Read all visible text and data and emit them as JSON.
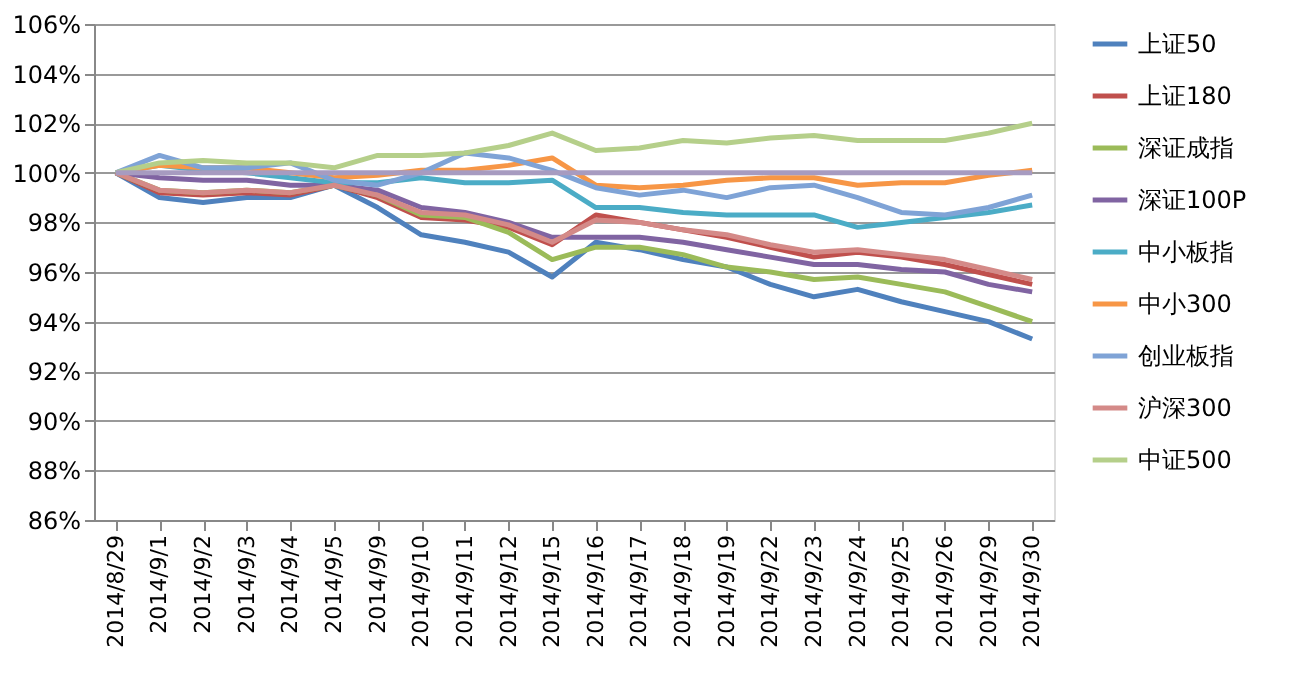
{
  "chart_data": {
    "type": "line",
    "categories": [
      "2014/8/29",
      "2014/9/1",
      "2014/9/2",
      "2014/9/3",
      "2014/9/4",
      "2014/9/5",
      "2014/9/9",
      "2014/9/10",
      "2014/9/11",
      "2014/9/12",
      "2014/9/15",
      "2014/9/16",
      "2014/9/17",
      "2014/9/18",
      "2014/9/19",
      "2014/9/22",
      "2014/9/23",
      "2014/9/24",
      "2014/9/25",
      "2014/9/26",
      "2014/9/29",
      "2014/9/30"
    ],
    "ylim": [
      86,
      106
    ],
    "yticks": [
      {
        "value": 86,
        "label": "86%"
      },
      {
        "value": 88,
        "label": "88%"
      },
      {
        "value": 90,
        "label": "90%"
      },
      {
        "value": 92,
        "label": "92%"
      },
      {
        "value": 94,
        "label": "94%"
      },
      {
        "value": 96,
        "label": "96%"
      },
      {
        "value": 98,
        "label": "98%"
      },
      {
        "value": 100,
        "label": "100%"
      },
      {
        "value": 102,
        "label": "102%"
      },
      {
        "value": 104,
        "label": "104%"
      },
      {
        "value": 106,
        "label": "106%"
      }
    ],
    "grid": "y",
    "legend": "right",
    "marker": "none",
    "line_style": "solid",
    "series": [
      {
        "name": "上证50",
        "color": "#4f81bd",
        "values": [
          100,
          99.0,
          98.8,
          99.0,
          99.0,
          99.5,
          98.6,
          97.5,
          97.2,
          96.8,
          95.8,
          97.2,
          96.9,
          96.5,
          96.2,
          95.5,
          95.0,
          95.3,
          94.8,
          94.4,
          94.0,
          93.3
        ]
      },
      {
        "name": "上证180",
        "color": "#c0504d",
        "values": [
          100,
          99.2,
          99.1,
          99.2,
          99.1,
          99.5,
          99.0,
          98.2,
          98.1,
          97.8,
          97.1,
          98.3,
          98.0,
          97.7,
          97.4,
          97.0,
          96.6,
          96.8,
          96.6,
          96.3,
          95.9,
          95.5
        ]
      },
      {
        "name": "深证成指",
        "color": "#9bbb59",
        "values": [
          100,
          99.3,
          99.2,
          99.3,
          99.2,
          99.5,
          99.1,
          98.3,
          98.2,
          97.6,
          96.5,
          97.0,
          97.0,
          96.7,
          96.2,
          96.0,
          95.7,
          95.8,
          95.5,
          95.2,
          94.6,
          94.0
        ]
      },
      {
        "name": "深证100P",
        "color": "#8064a2",
        "values": [
          100,
          99.8,
          99.7,
          99.7,
          99.5,
          99.5,
          99.3,
          98.6,
          98.4,
          98.0,
          97.4,
          97.4,
          97.4,
          97.2,
          96.9,
          96.6,
          96.3,
          96.3,
          96.1,
          96.0,
          95.5,
          95.2
        ]
      },
      {
        "name": "中小板指",
        "color": "#4bacc6",
        "values": [
          100,
          100.3,
          100.1,
          100.0,
          99.8,
          99.6,
          99.6,
          99.8,
          99.6,
          99.6,
          99.7,
          98.6,
          98.6,
          98.4,
          98.3,
          98.3,
          98.3,
          97.8,
          98.0,
          98.2,
          98.4,
          98.7
        ]
      },
      {
        "name": "中小300",
        "color": "#f79646",
        "values": [
          100,
          100.3,
          100.2,
          100.2,
          100.0,
          99.8,
          99.9,
          100.1,
          100.1,
          100.3,
          100.6,
          99.5,
          99.4,
          99.5,
          99.7,
          99.8,
          99.8,
          99.5,
          99.6,
          99.6,
          99.9,
          100.1
        ]
      },
      {
        "name": "创业板指",
        "color": "#7fa3d6",
        "values": [
          100,
          100.7,
          100.2,
          100.2,
          100.4,
          99.7,
          99.5,
          100.0,
          100.8,
          100.6,
          100.1,
          99.4,
          99.1,
          99.3,
          99.0,
          99.4,
          99.5,
          99.0,
          98.4,
          98.3,
          98.6,
          99.1
        ]
      },
      {
        "name": "沪深300",
        "color": "#d48a88",
        "values": [
          100,
          99.3,
          99.2,
          99.3,
          99.2,
          99.5,
          99.1,
          98.4,
          98.3,
          97.9,
          97.2,
          98.1,
          98.0,
          97.7,
          97.5,
          97.1,
          96.8,
          96.9,
          96.7,
          96.5,
          96.1,
          95.7
        ]
      },
      {
        "name": "中证500",
        "color": "#b5cf8a",
        "values": [
          100,
          100.4,
          100.5,
          100.4,
          100.4,
          100.2,
          100.7,
          100.7,
          100.8,
          101.1,
          101.6,
          100.9,
          101.0,
          101.3,
          101.2,
          101.4,
          101.5,
          101.3,
          101.3,
          101.3,
          101.6,
          102.0
        ]
      },
      {
        "color": "#a79bc0",
        "values": [
          100,
          100,
          100,
          100,
          100,
          100,
          100,
          100,
          100,
          100,
          100,
          100,
          100,
          100,
          100,
          100,
          100,
          100,
          100,
          100,
          100,
          100
        ]
      }
    ]
  }
}
